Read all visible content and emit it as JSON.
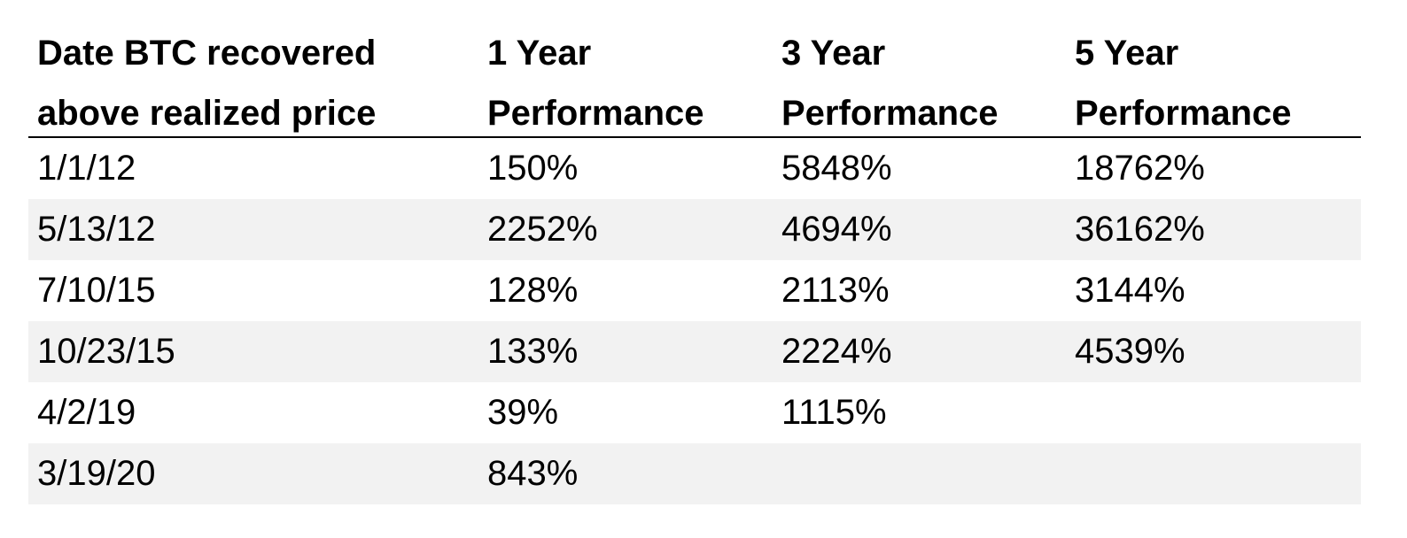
{
  "table": {
    "header": [
      "Date BTC recovered above realized price",
      "1 Year Performance",
      "3 Year Performance",
      "5 Year Performance"
    ],
    "rows": [
      [
        "1/1/12",
        "150%",
        "5848%",
        "18762%"
      ],
      [
        "5/13/12",
        "2252%",
        "4694%",
        "36162%"
      ],
      [
        "7/10/15",
        "128%",
        "2113%",
        "3144%"
      ],
      [
        "10/23/15",
        "133%",
        "2224%",
        "4539%"
      ],
      [
        "4/2/19",
        "39%",
        "1115%"
      ],
      [
        "3/19/20",
        "843%"
      ]
    ]
  }
}
